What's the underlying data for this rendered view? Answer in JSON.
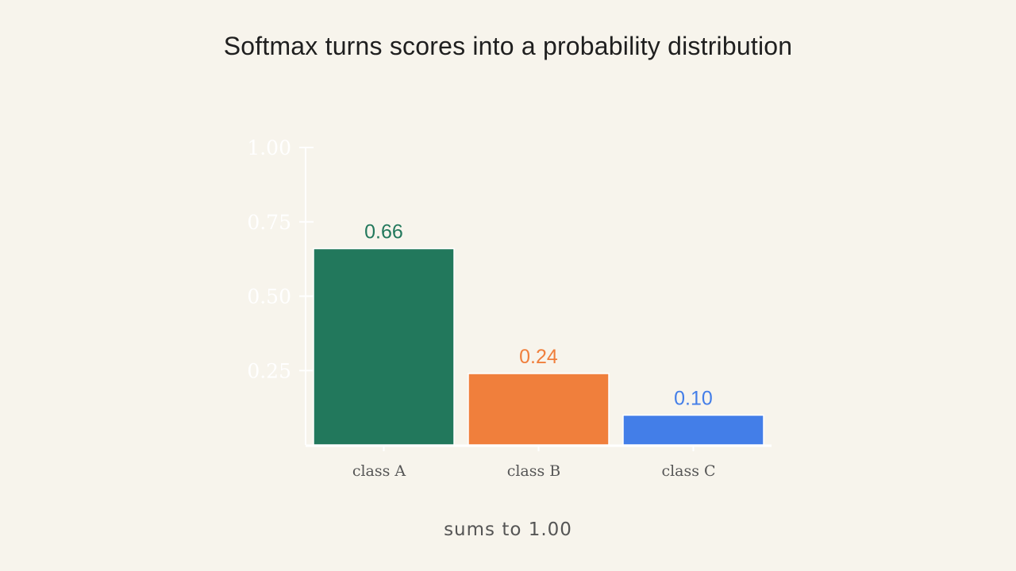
{
  "title": "Softmax turns scores into a probability distribution",
  "caption": "sums to 1.00",
  "chart_data": {
    "type": "bar",
    "categories": [
      "class A",
      "class B",
      "class C"
    ],
    "values": [
      0.66,
      0.24,
      0.1
    ],
    "value_labels": [
      "0.66",
      "0.24",
      "0.10"
    ],
    "bar_colors": [
      "#22785c",
      "#f07f3c",
      "#437ee8"
    ],
    "ylim": [
      0,
      1.0
    ],
    "yticks": [
      0.25,
      0.5,
      0.75,
      1.0
    ],
    "ytick_labels": [
      "0.25",
      "0.50",
      "0.75",
      "1.00"
    ],
    "axis_color": "#ffffff",
    "grid": false
  }
}
